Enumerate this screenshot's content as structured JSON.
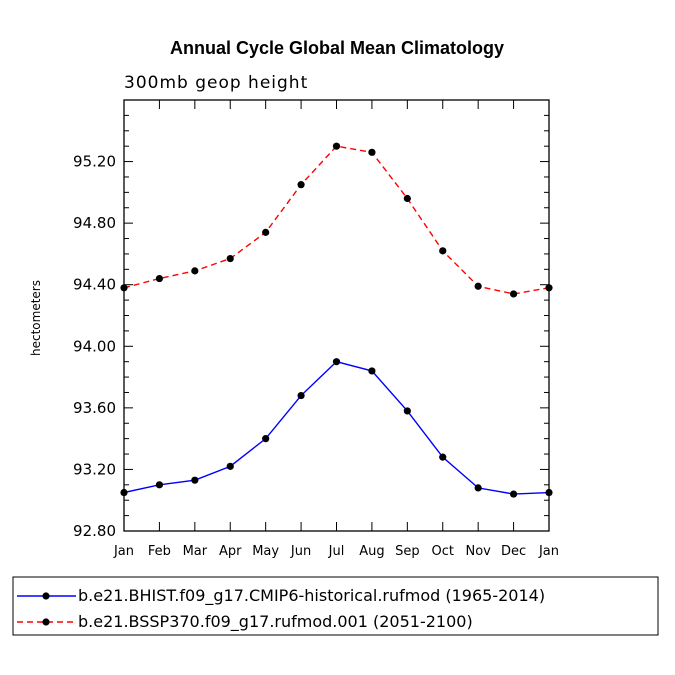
{
  "chart_data": {
    "type": "line",
    "title": "Annual Cycle Global Mean Climatology",
    "subtitle": "300mb geop height",
    "xlabel": "",
    "ylabel": "hectometers",
    "categories": [
      "Jan",
      "Feb",
      "Mar",
      "Apr",
      "May",
      "Jun",
      "Jul",
      "Aug",
      "Sep",
      "Oct",
      "Nov",
      "Dec",
      "Jan"
    ],
    "ylim": [
      92.8,
      95.6
    ],
    "yticks": [
      92.8,
      93.2,
      93.6,
      94.0,
      94.4,
      94.8,
      95.2
    ],
    "ytick_labels": [
      "92.80",
      "93.20",
      "93.60",
      "94.00",
      "94.40",
      "94.80",
      "95.20"
    ],
    "series": [
      {
        "name": "b.e21.BHIST.f09_g17.CMIP6-historical.rufmod (1965-2014)",
        "color": "#0000ff",
        "dash": "solid",
        "values": [
          93.05,
          93.1,
          93.13,
          93.22,
          93.4,
          93.68,
          93.9,
          93.84,
          93.58,
          93.28,
          93.08,
          93.04,
          93.05
        ]
      },
      {
        "name": "b.e21.BSSP370.f09_g17.rufmod.001 (2051-2100)",
        "color": "#ff0000",
        "dash": "dashed",
        "values": [
          94.38,
          94.44,
          94.49,
          94.57,
          94.74,
          95.05,
          95.3,
          95.26,
          94.96,
          94.62,
          94.39,
          94.34,
          94.38
        ]
      }
    ],
    "legend": "bottom",
    "grid": false
  }
}
